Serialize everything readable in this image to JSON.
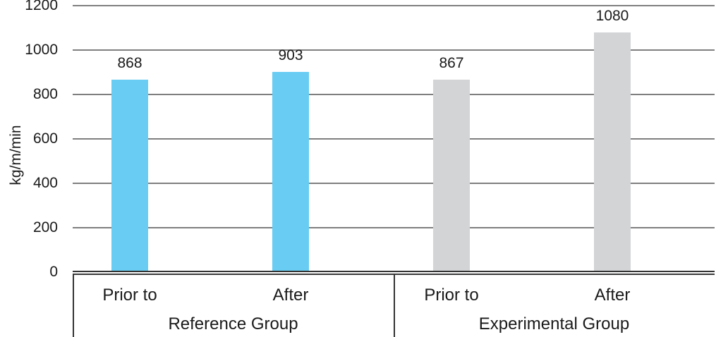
{
  "chart_data": {
    "type": "bar",
    "title": "",
    "ylabel": "kg/m/min",
    "xlabel": "",
    "ylim": [
      0,
      1200
    ],
    "ytick_step": 200,
    "yticks": [
      0,
      200,
      400,
      600,
      800,
      1000,
      1200
    ],
    "grid": true,
    "legend": "none",
    "categories": [
      "Prior to",
      "After",
      "Prior to",
      "After"
    ],
    "values": [
      868,
      903,
      867,
      1080
    ],
    "groups": [
      {
        "label": "Reference Group",
        "color": "#69CDF3",
        "bars": [
          {
            "category": "Prior to",
            "value": 868,
            "data_label": "868"
          },
          {
            "category": "After",
            "value": 903,
            "data_label": "903"
          }
        ]
      },
      {
        "label": "Experimental Group",
        "color": "#D2D4D6",
        "bars": [
          {
            "category": "Prior to",
            "value": 867,
            "data_label": "867"
          },
          {
            "category": "After",
            "value": 1080,
            "data_label": "1080"
          }
        ]
      }
    ],
    "colors": {
      "reference_bars": "#69CDF3",
      "experimental_bars": "#D2D4D6",
      "gridline": "#7f7f7f",
      "axis_line": "#333333",
      "text": "#1a1a1a",
      "background": "#ffffff"
    }
  }
}
